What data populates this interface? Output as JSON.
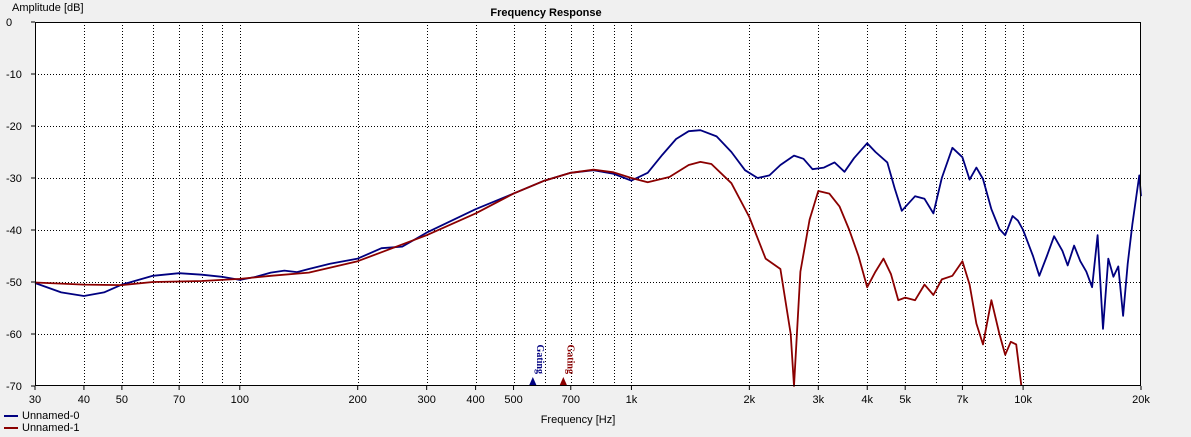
{
  "chart_data": {
    "type": "line",
    "title": "Frequency Response",
    "xlabel": "Frequency [Hz]",
    "ylabel": "Amplitude [dB]",
    "x_scale": "log",
    "xlim": [
      30,
      20000
    ],
    "ylim": [
      -70,
      0
    ],
    "grid": true,
    "legend_position": "bottom-left",
    "x_ticks": [
      {
        "value": 30,
        "label": "30"
      },
      {
        "value": 40,
        "label": "40"
      },
      {
        "value": 50,
        "label": "50"
      },
      {
        "value": 70,
        "label": "70"
      },
      {
        "value": 100,
        "label": "100"
      },
      {
        "value": 200,
        "label": "200"
      },
      {
        "value": 300,
        "label": "300"
      },
      {
        "value": 400,
        "label": "400"
      },
      {
        "value": 500,
        "label": "500"
      },
      {
        "value": 700,
        "label": "700"
      },
      {
        "value": 1000,
        "label": "1k"
      },
      {
        "value": 2000,
        "label": "2k"
      },
      {
        "value": 3000,
        "label": "3k"
      },
      {
        "value": 4000,
        "label": "4k"
      },
      {
        "value": 5000,
        "label": "5k"
      },
      {
        "value": 7000,
        "label": "7k"
      },
      {
        "value": 10000,
        "label": "10k"
      },
      {
        "value": 20000,
        "label": "20k"
      }
    ],
    "x_minor_grid": [
      60,
      80,
      90,
      600,
      800,
      900,
      6000,
      8000,
      9000
    ],
    "y_ticks": [
      {
        "value": 0,
        "label": "0"
      },
      {
        "value": -10,
        "label": "-10"
      },
      {
        "value": -20,
        "label": "-20"
      },
      {
        "value": -30,
        "label": "-30"
      },
      {
        "value": -40,
        "label": "-40"
      },
      {
        "value": -50,
        "label": "-50"
      },
      {
        "value": -60,
        "label": "-60"
      },
      {
        "value": -70,
        "label": "-70"
      }
    ],
    "markers": [
      {
        "label": "Gating",
        "x": 560,
        "color": "#000080"
      },
      {
        "label": "Gating",
        "x": 670,
        "color": "#8b0000"
      }
    ],
    "series": [
      {
        "name": "Unnamed-0",
        "color": "#000080",
        "points": [
          [
            30,
            -50.2
          ],
          [
            35,
            -52
          ],
          [
            40,
            -52.7
          ],
          [
            45,
            -52
          ],
          [
            50,
            -50.5
          ],
          [
            60,
            -48.8
          ],
          [
            70,
            -48.3
          ],
          [
            80,
            -48.6
          ],
          [
            90,
            -49
          ],
          [
            100,
            -49.6
          ],
          [
            110,
            -49
          ],
          [
            120,
            -48.2
          ],
          [
            130,
            -47.8
          ],
          [
            140,
            -48.1
          ],
          [
            150,
            -47.5
          ],
          [
            170,
            -46.5
          ],
          [
            200,
            -45.5
          ],
          [
            230,
            -43.5
          ],
          [
            260,
            -43.2
          ],
          [
            300,
            -40.5
          ],
          [
            400,
            -36
          ],
          [
            500,
            -33
          ],
          [
            600,
            -30.5
          ],
          [
            700,
            -29
          ],
          [
            800,
            -28.5
          ],
          [
            900,
            -29.2
          ],
          [
            1000,
            -30.5
          ],
          [
            1100,
            -29
          ],
          [
            1200,
            -25.5
          ],
          [
            1300,
            -22.5
          ],
          [
            1400,
            -21
          ],
          [
            1500,
            -20.8
          ],
          [
            1650,
            -22
          ],
          [
            1800,
            -25
          ],
          [
            1950,
            -28.5
          ],
          [
            2100,
            -30
          ],
          [
            2250,
            -29.5
          ],
          [
            2400,
            -27.5
          ],
          [
            2600,
            -25.7
          ],
          [
            2750,
            -26.3
          ],
          [
            2900,
            -28.3
          ],
          [
            3100,
            -28
          ],
          [
            3300,
            -27
          ],
          [
            3500,
            -28.8
          ],
          [
            3700,
            -26.2
          ],
          [
            4000,
            -23.3
          ],
          [
            4200,
            -25
          ],
          [
            4500,
            -27
          ],
          [
            4700,
            -32
          ],
          [
            4900,
            -36.3
          ],
          [
            5300,
            -33.5
          ],
          [
            5600,
            -34
          ],
          [
            5900,
            -36.8
          ],
          [
            6200,
            -30
          ],
          [
            6600,
            -24.2
          ],
          [
            7000,
            -26
          ],
          [
            7300,
            -30.3
          ],
          [
            7600,
            -28
          ],
          [
            7900,
            -30.2
          ],
          [
            8300,
            -36
          ],
          [
            8700,
            -39.8
          ],
          [
            9000,
            -41
          ],
          [
            9400,
            -37.3
          ],
          [
            9700,
            -38.2
          ],
          [
            10000,
            -40
          ],
          [
            10600,
            -45
          ],
          [
            11000,
            -48.8
          ],
          [
            11500,
            -45
          ],
          [
            12000,
            -41.2
          ],
          [
            12600,
            -44
          ],
          [
            13000,
            -46.8
          ],
          [
            13500,
            -43
          ],
          [
            14000,
            -46
          ],
          [
            14500,
            -48
          ],
          [
            15000,
            -51
          ],
          [
            15500,
            -41
          ],
          [
            16000,
            -59
          ],
          [
            16500,
            -45.5
          ],
          [
            17000,
            -49
          ],
          [
            17500,
            -47
          ],
          [
            18000,
            -56.5
          ],
          [
            18500,
            -46.5
          ],
          [
            19000,
            -39
          ],
          [
            19500,
            -33
          ],
          [
            19800,
            -29.5
          ],
          [
            20000,
            -33.5
          ]
        ]
      },
      {
        "name": "Unnamed-1",
        "color": "#8b0000",
        "points": [
          [
            30,
            -50.1
          ],
          [
            40,
            -50.5
          ],
          [
            50,
            -50.6
          ],
          [
            60,
            -50
          ],
          [
            80,
            -49.8
          ],
          [
            100,
            -49.4
          ],
          [
            120,
            -48.8
          ],
          [
            150,
            -48.2
          ],
          [
            200,
            -46
          ],
          [
            300,
            -41
          ],
          [
            400,
            -36.8
          ],
          [
            500,
            -33
          ],
          [
            600,
            -30.5
          ],
          [
            700,
            -29
          ],
          [
            800,
            -28.4
          ],
          [
            900,
            -28.9
          ],
          [
            1000,
            -30
          ],
          [
            1100,
            -30.8
          ],
          [
            1250,
            -29.8
          ],
          [
            1400,
            -27.5
          ],
          [
            1500,
            -26.9
          ],
          [
            1600,
            -27.3
          ],
          [
            1800,
            -31
          ],
          [
            2000,
            -37.5
          ],
          [
            2200,
            -45.5
          ],
          [
            2400,
            -47.5
          ],
          [
            2550,
            -60
          ],
          [
            2600,
            -70
          ],
          [
            2700,
            -48
          ],
          [
            2850,
            -38
          ],
          [
            3000,
            -32.5
          ],
          [
            3200,
            -33
          ],
          [
            3400,
            -35.5
          ],
          [
            3600,
            -40
          ],
          [
            3800,
            -45
          ],
          [
            4000,
            -51
          ],
          [
            4200,
            -48
          ],
          [
            4400,
            -45.5
          ],
          [
            4600,
            -48.5
          ],
          [
            4800,
            -53.5
          ],
          [
            5000,
            -53
          ],
          [
            5300,
            -53.5
          ],
          [
            5600,
            -50.5
          ],
          [
            5900,
            -52.5
          ],
          [
            6200,
            -49.5
          ],
          [
            6600,
            -48.8
          ],
          [
            7000,
            -46
          ],
          [
            7300,
            -50.5
          ],
          [
            7600,
            -58
          ],
          [
            7900,
            -62
          ],
          [
            8300,
            -53.5
          ],
          [
            8700,
            -60
          ],
          [
            9000,
            -64
          ],
          [
            9300,
            -61.5
          ],
          [
            9600,
            -62
          ],
          [
            9900,
            -70
          ]
        ]
      }
    ]
  }
}
